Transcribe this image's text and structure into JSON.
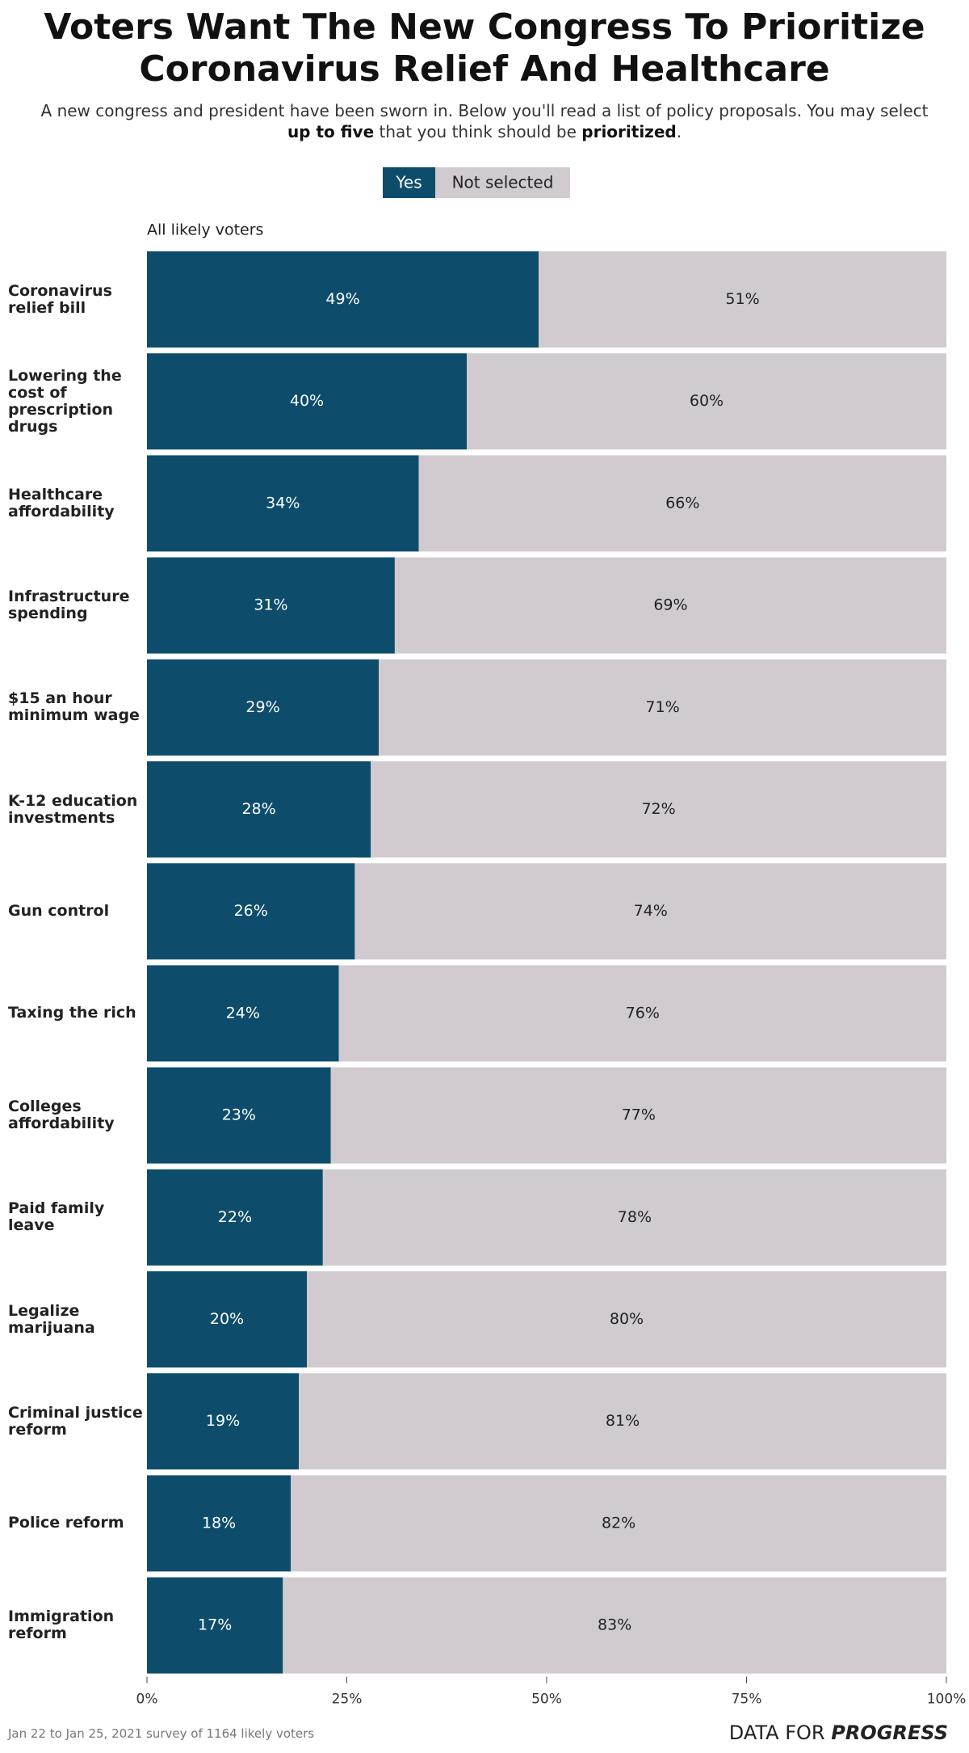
{
  "chart_data": {
    "type": "stacked-bar-horizontal",
    "title": "Voters Want The New Congress To Prioritize Coronavirus Relief And Healthcare",
    "subtitle_parts": [
      "A new congress and president have been sworn in. Below you'll read a list of policy proposals. You may select ",
      "up to five",
      " that you think should be ",
      "prioritized",
      "."
    ],
    "group_label": "All likely voters",
    "categories": [
      "Coronavirus relief bill",
      "Lowering the cost of prescription drugs",
      "Healthcare affordability",
      "Infrastructure spending",
      "$15 an hour minimum wage",
      "K-12 education investments",
      "Gun control",
      "Taxing the rich",
      "Colleges affordability",
      "Paid family leave",
      "Legalize marijuana",
      "Criminal justice reform",
      "Police reform",
      "Immigration reform"
    ],
    "series": [
      {
        "name": "Yes",
        "color": "#0d4d6b",
        "label_color": "#ffffff",
        "values": [
          49,
          40,
          34,
          31,
          29,
          28,
          26,
          24,
          23,
          22,
          20,
          19,
          18,
          17
        ],
        "value_labels": [
          "49%",
          "40%",
          "34%",
          "31%",
          "29%",
          "28%",
          "26%",
          "24%",
          "23%",
          "22%",
          "20%",
          "19%",
          "18%",
          "17%"
        ]
      },
      {
        "name": "Not selected",
        "color": "#d1cbcf",
        "label_color": "#222222",
        "values": [
          51,
          60,
          66,
          69,
          71,
          72,
          74,
          76,
          77,
          78,
          80,
          81,
          82,
          83
        ],
        "value_labels": [
          "51%",
          "60%",
          "66%",
          "69%",
          "71%",
          "72%",
          "74%",
          "76%",
          "77%",
          "78%",
          "80%",
          "81%",
          "82%",
          "83%"
        ]
      }
    ],
    "xlim": [
      0,
      100
    ],
    "xticks": [
      {
        "value": 0,
        "label": "0%"
      },
      {
        "value": 25,
        "label": "25%"
      },
      {
        "value": 50,
        "label": "50%"
      },
      {
        "value": 75,
        "label": "75%"
      },
      {
        "value": 100,
        "label": "100%"
      }
    ],
    "grid": false,
    "note": "Jan 22 to Jan 25, 2021 survey of 1164 likely voters",
    "brand_parts": [
      "DATA FOR ",
      "PROGRESS"
    ]
  }
}
